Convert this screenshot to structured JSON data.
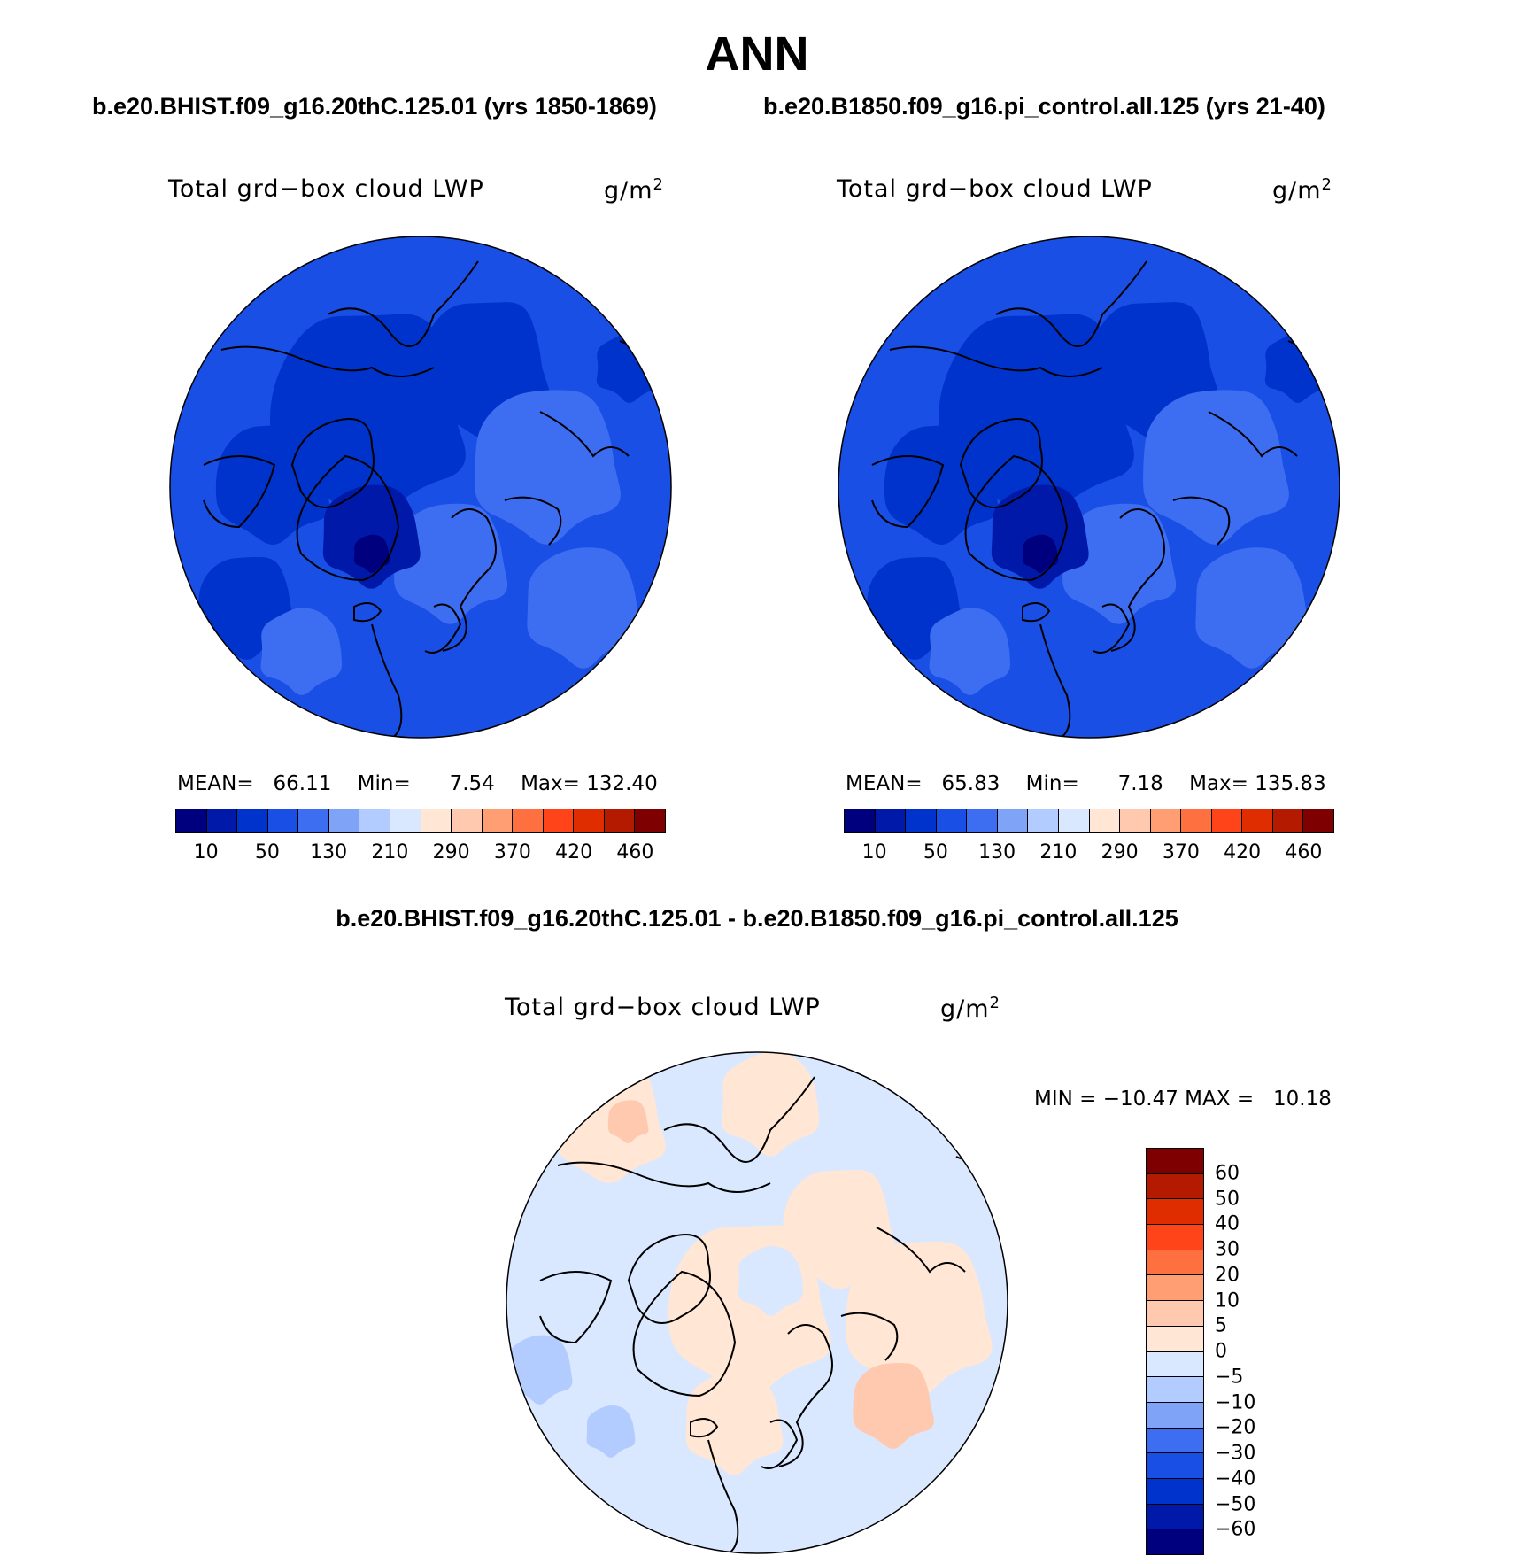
{
  "title": "ANN",
  "test_case_title": "b.e20.BHIST.f09_g16.20thC.125.01 (yrs 1850-1869)",
  "control_case_title": "b.e20.B1850.f09_g16.pi_control.all.125 (yrs 21-40)",
  "diff_title": "b.e20.BHIST.f09_g16.20thC.125.01 - b.e20.B1850.f09_g16.pi_control.all.125",
  "variable_label": "Total grd−box cloud LWP",
  "units_base": "g/m",
  "units_exp": "2",
  "colors": {
    "abs_palette": [
      "#00007f",
      "#0019a8",
      "#0033cc",
      "#1a4fe6",
      "#3d6ef2",
      "#7fa3f7",
      "#b3ccff",
      "#d9e8ff",
      "#ffe6d5",
      "#ffc9b0",
      "#ff9e73",
      "#ff7040",
      "#ff4419",
      "#e02d00",
      "#b31a00",
      "#7f0000"
    ],
    "diff_palette": [
      "#00007f",
      "#0019a8",
      "#0033cc",
      "#1a4fe6",
      "#3d6ef2",
      "#7fa3f7",
      "#b3ccff",
      "#d9e8ff",
      "#ffe6d5",
      "#ffc9b0",
      "#ff9e73",
      "#ff7040",
      "#ff4419",
      "#e02d00",
      "#b31a00",
      "#7f0000"
    ],
    "coast": "#000000"
  },
  "chart_data": [
    {
      "type": "polar-contour-map",
      "panel": "test",
      "title": "Total grd−box cloud LWP",
      "units": "g/m2",
      "stats": {
        "mean_label": "MEAN=",
        "mean": "66.11",
        "min_label": "Min=",
        "min": "7.54",
        "max_label": "Max=",
        "max": "132.40"
      },
      "colorbar_ticks": [
        "10",
        "50",
        "130",
        "210",
        "290",
        "370",
        "420",
        "460"
      ],
      "field_levels": [
        "#1a4fe6",
        "#0033cc",
        "#3d6ef2",
        "#0019a8",
        "#00007f",
        "#7fa3f7"
      ]
    },
    {
      "type": "polar-contour-map",
      "panel": "control",
      "title": "Total grd−box cloud LWP",
      "units": "g/m2",
      "stats": {
        "mean_label": "MEAN=",
        "mean": "65.83",
        "min_label": "Min=",
        "min": "7.18",
        "max_label": "Max=",
        "max": "135.83"
      },
      "colorbar_ticks": [
        "10",
        "50",
        "130",
        "210",
        "290",
        "370",
        "420",
        "460"
      ],
      "field_levels": [
        "#1a4fe6",
        "#0033cc",
        "#3d6ef2",
        "#0019a8",
        "#00007f",
        "#7fa3f7"
      ]
    },
    {
      "type": "polar-contour-map",
      "panel": "difference",
      "title": "Total grd−box cloud LWP",
      "units": "g/m2",
      "stats": {
        "min_label": "MIN =",
        "min": "−10.47",
        "max_label": "MAX =",
        "max": "10.18"
      },
      "colorbar_ticks": [
        "60",
        "50",
        "40",
        "30",
        "20",
        "10",
        "5",
        "0",
        "−5",
        "−10",
        "−20",
        "−30",
        "−40",
        "−50",
        "−60"
      ],
      "field_levels": [
        "#d9e8ff",
        "#ffe6d5",
        "#ffc9b0",
        "#b3ccff"
      ]
    }
  ]
}
